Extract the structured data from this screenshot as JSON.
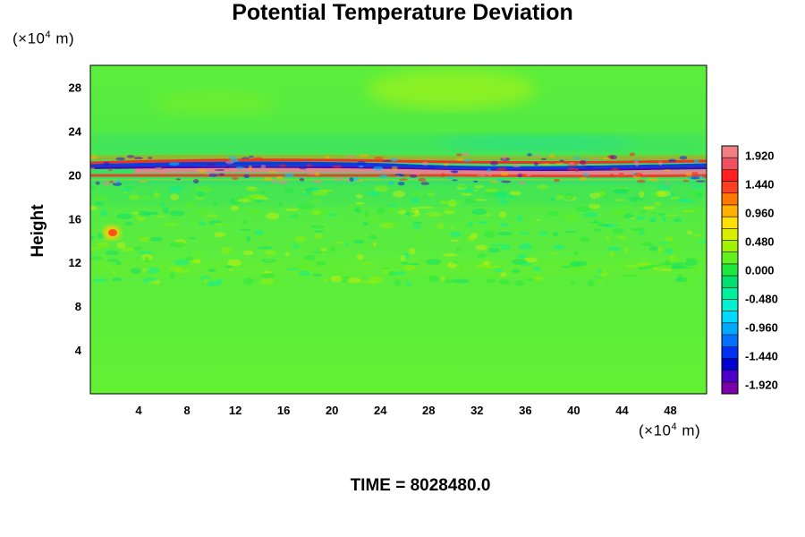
{
  "chart_data": {
    "type": "heatmap",
    "title": "Potential Temperature Deviation",
    "xlabel": "",
    "ylabel": "Height",
    "x_unit": {
      "prefix": "(×10",
      "exp": "4",
      "suffix": " m)"
    },
    "y_unit": {
      "prefix": "(×10",
      "exp": "4",
      "suffix": " m)"
    },
    "xlim": [
      0,
      51
    ],
    "ylim": [
      0,
      30
    ],
    "x_ticks": [
      "4",
      "8",
      "12",
      "16",
      "20",
      "24",
      "28",
      "32",
      "36",
      "40",
      "44",
      "48"
    ],
    "x_tick_values": [
      4,
      8,
      12,
      16,
      20,
      24,
      28,
      32,
      36,
      40,
      44,
      48
    ],
    "y_ticks": [
      "4",
      "8",
      "12",
      "16",
      "20",
      "24",
      "28"
    ],
    "y_tick_values": [
      4,
      8,
      12,
      16,
      20,
      24,
      28
    ],
    "colorbar": {
      "min": -2.08,
      "max": 2.08,
      "labels": [
        "1.920",
        "1.440",
        "0.960",
        "0.480",
        "0.000",
        "-0.480",
        "-0.960",
        "-1.440",
        "-1.920"
      ],
      "label_values": [
        1.92,
        1.44,
        0.96,
        0.48,
        0.0,
        -0.48,
        -0.96,
        -1.44,
        -1.92
      ],
      "colors": [
        "#7a00a8",
        "#4b00c8",
        "#0000d0",
        "#0030f0",
        "#0070ff",
        "#00a8ff",
        "#00d8ff",
        "#00f0d0",
        "#00f0a0",
        "#00e070",
        "#20e840",
        "#60f020",
        "#a0f000",
        "#d8f000",
        "#ffe000",
        "#ffb000",
        "#ff7800",
        "#ff4020",
        "#ff2020",
        "#f05060",
        "#f08080"
      ]
    },
    "features": [
      {
        "kind": "layer",
        "description": "strong oscillating band",
        "y_center": 20.3,
        "amplitude_range": [
          -1.92,
          1.92
        ]
      },
      {
        "kind": "anomaly",
        "x": 2,
        "y": 14.8,
        "value": 0.9
      }
    ]
  },
  "footer": {
    "time_text": "TIME = 8028480.0"
  }
}
